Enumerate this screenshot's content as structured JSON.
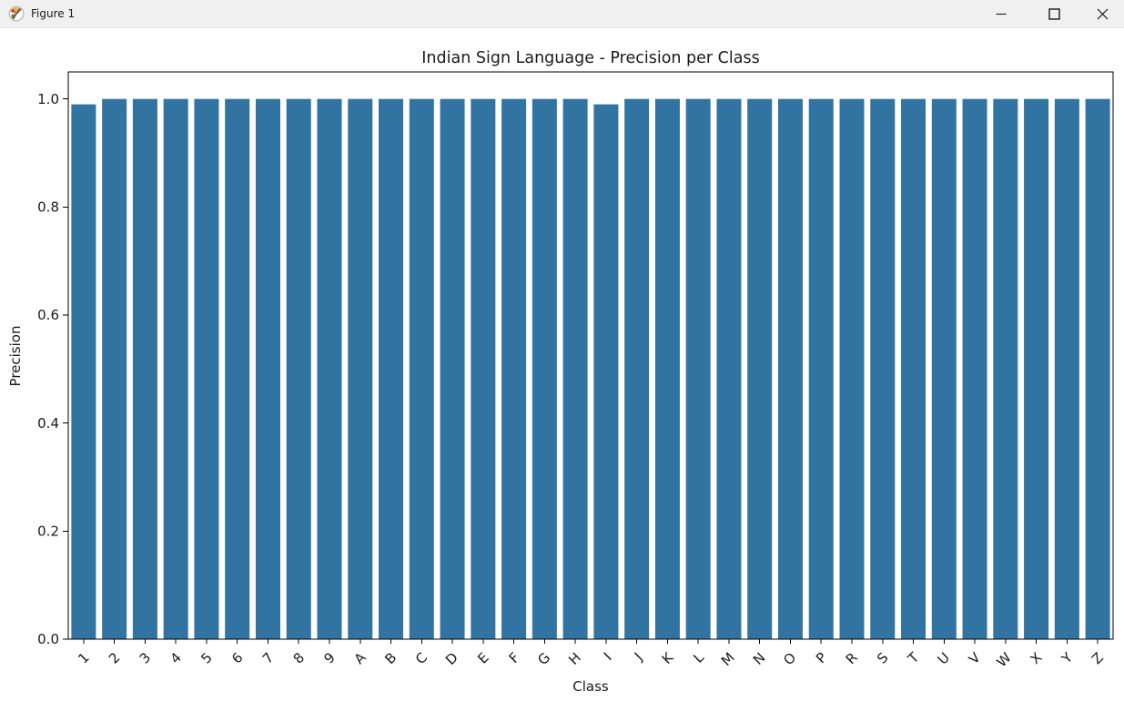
{
  "window": {
    "title": "Figure 1",
    "controls": [
      {
        "icon": "minimize-icon"
      },
      {
        "icon": "maximize-icon"
      },
      {
        "icon": "close-icon"
      }
    ]
  },
  "chart_data": {
    "type": "bar",
    "title": "Indian Sign Language - Precision per Class",
    "xlabel": "Class",
    "ylabel": "Precision",
    "categories": [
      "1",
      "2",
      "3",
      "4",
      "5",
      "6",
      "7",
      "8",
      "9",
      "A",
      "B",
      "C",
      "D",
      "E",
      "F",
      "G",
      "H",
      "I",
      "J",
      "K",
      "L",
      "M",
      "N",
      "O",
      "P",
      "R",
      "S",
      "T",
      "U",
      "V",
      "W",
      "X",
      "Y",
      "Z"
    ],
    "values": [
      0.99,
      1.0,
      1.0,
      1.0,
      1.0,
      1.0,
      1.0,
      1.0,
      1.0,
      1.0,
      1.0,
      1.0,
      1.0,
      1.0,
      1.0,
      1.0,
      1.0,
      0.99,
      1.0,
      1.0,
      1.0,
      1.0,
      1.0,
      1.0,
      1.0,
      1.0,
      1.0,
      1.0,
      1.0,
      1.0,
      1.0,
      1.0,
      1.0,
      1.0
    ],
    "yticks": [
      0.0,
      0.2,
      0.4,
      0.6,
      0.8,
      1.0
    ],
    "ylim": [
      0,
      1.05
    ],
    "bar_color": "#3274a1",
    "bar_width_fraction": 0.8,
    "xtick_rotation": 45,
    "grid": false,
    "legend": null
  }
}
